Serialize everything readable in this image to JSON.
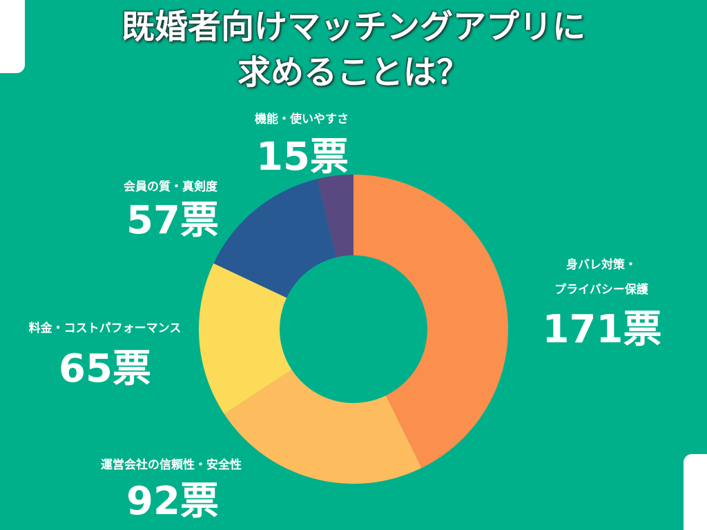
{
  "colors": {
    "background": "#00b08b"
  },
  "chart_data": {
    "type": "pie",
    "donut": true,
    "title_lines": [
      "既婚者向けマッチングアプリに",
      "求めることは？"
    ],
    "unit": "票",
    "slices": [
      {
        "label": "身バレ対策・プライバシー保護",
        "label_lines": [
          "身バレ対策・",
          "プライバシー保護"
        ],
        "value": 171,
        "votes_text": "171票",
        "color": "#fb8f4d"
      },
      {
        "label": "運営会社の信頼性・安全性",
        "label_lines": [
          "運営会社の信頼性・安全性"
        ],
        "value": 92,
        "votes_text": "92票",
        "color": "#fdbc5d"
      },
      {
        "label": "料金・コストパフォーマンス",
        "label_lines": [
          "料金・コストパフォーマンス"
        ],
        "value": 65,
        "votes_text": "65票",
        "color": "#fcdb58"
      },
      {
        "label": "会員の質・真剣度",
        "label_lines": [
          "会員の質・真剣度"
        ],
        "value": 57,
        "votes_text": "57票",
        "color": "#295993"
      },
      {
        "label": "機能・使いやすさ",
        "label_lines": [
          "機能・使いやすさ"
        ],
        "value": 15,
        "votes_text": "15票",
        "color": "#584a80"
      }
    ]
  }
}
